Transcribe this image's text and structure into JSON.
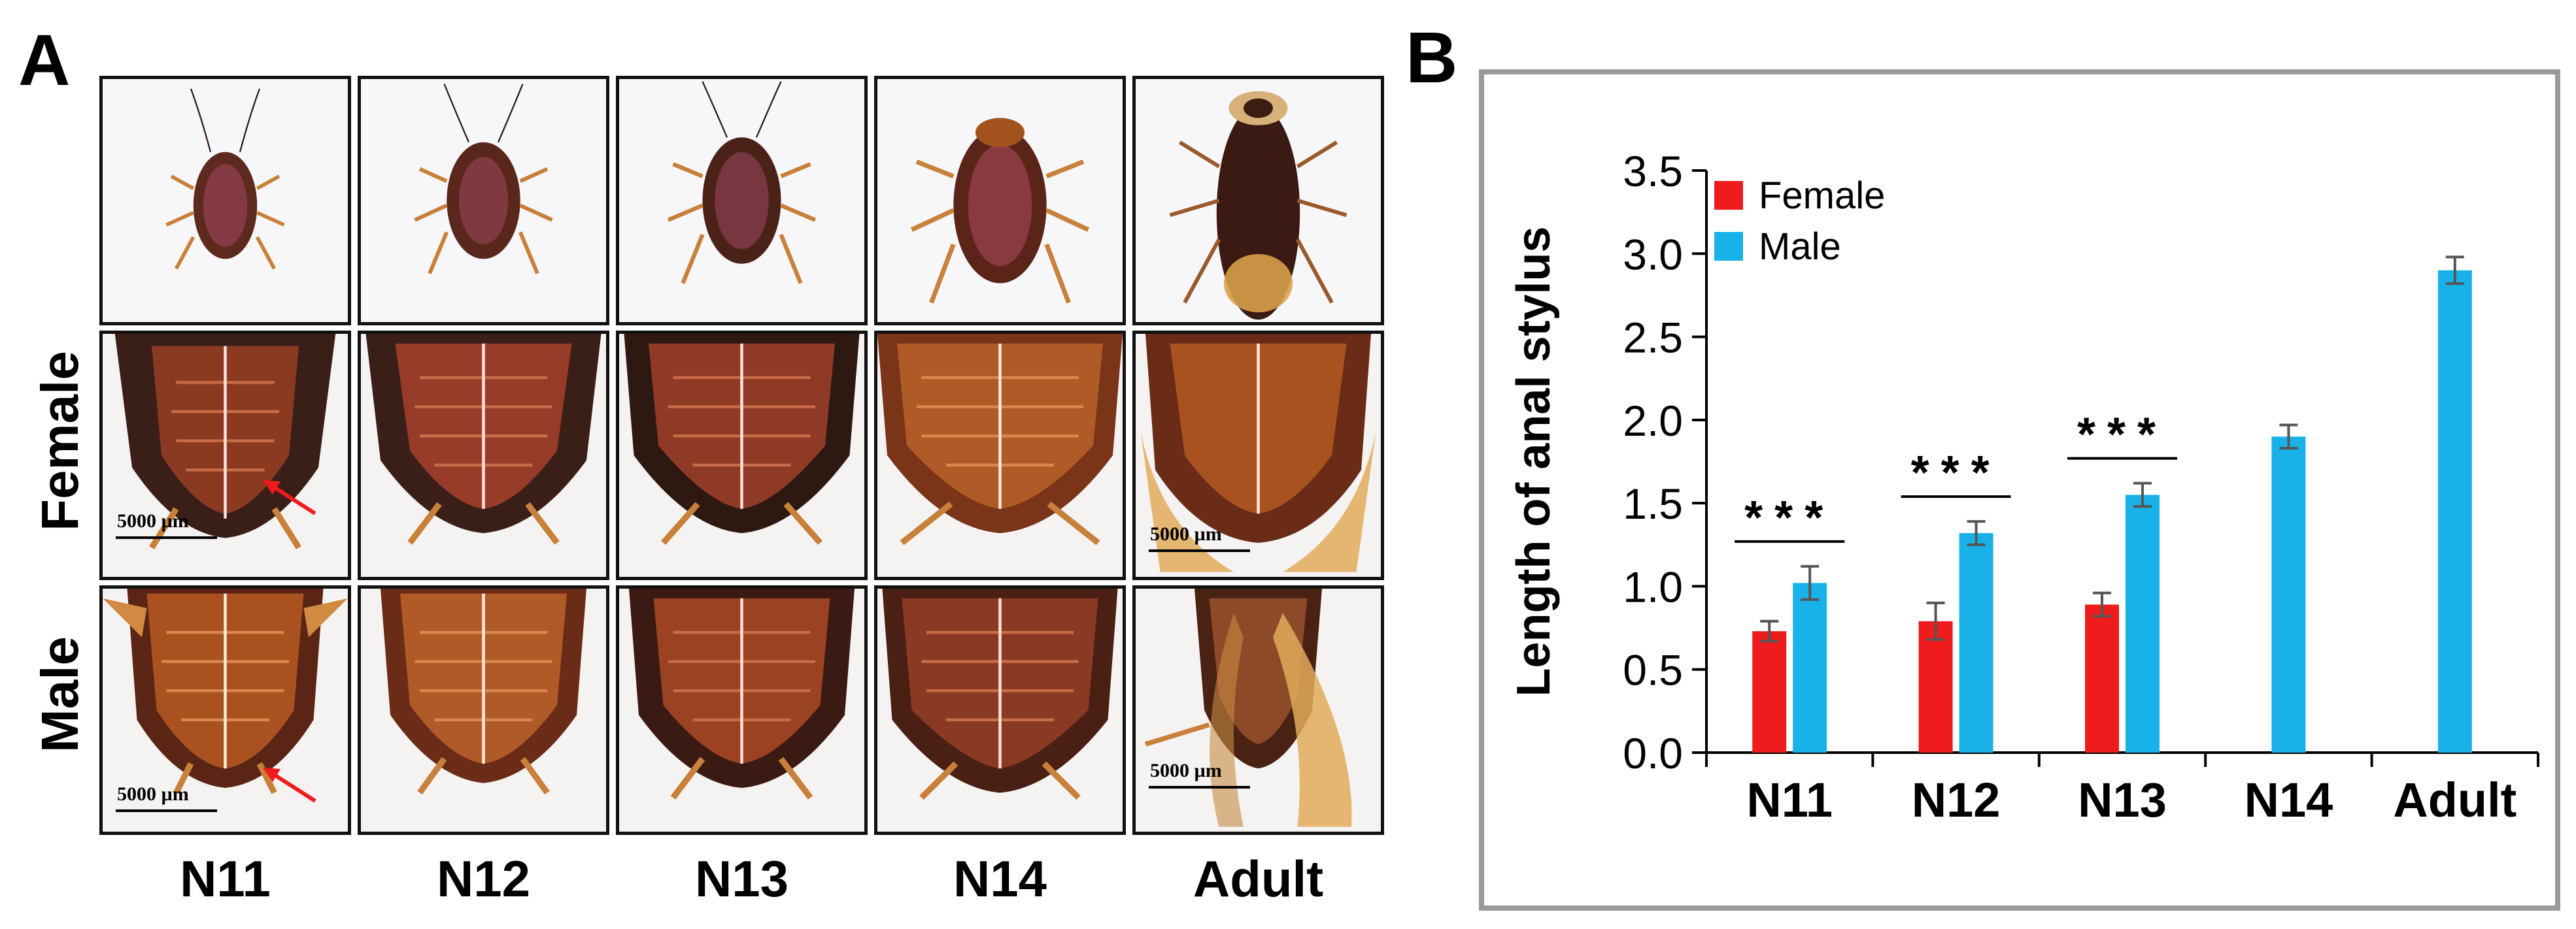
{
  "panel_a": {
    "letter": "A",
    "row_labels": [
      "Female",
      "Male"
    ],
    "columns": [
      "N11",
      "N12",
      "N13",
      "N14",
      "Adult"
    ],
    "scale_bar_label": "5000 µm"
  },
  "panel_b": {
    "letter": "B"
  },
  "colors": {
    "female": "#ee1c1c",
    "male": "#19b2e8",
    "arrow": "#ee1c1c"
  },
  "icons": {
    "arrow": "red-arrow-icon"
  },
  "chart_data": {
    "type": "bar",
    "title": "",
    "xlabel": "",
    "ylabel": "Length of anal stylus",
    "categories": [
      "N11",
      "N12",
      "N13",
      "N14",
      "Adult"
    ],
    "ylim": [
      0,
      3.5
    ],
    "yticks": [
      "0.0",
      "0.5",
      "1.0",
      "1.5",
      "2.0",
      "2.5",
      "3.0",
      "3.5"
    ],
    "legend_position": "top-left",
    "series": [
      {
        "name": "Female",
        "values": [
          0.73,
          0.79,
          0.89,
          null,
          null
        ],
        "errors": [
          0.06,
          0.11,
          0.07,
          null,
          null
        ]
      },
      {
        "name": "Male",
        "values": [
          1.02,
          1.32,
          1.55,
          1.9,
          2.9
        ],
        "errors": [
          0.1,
          0.07,
          0.07,
          0.07,
          0.08
        ]
      }
    ],
    "significance": [
      {
        "category": "N11",
        "label": "***"
      },
      {
        "category": "N12",
        "label": "***"
      },
      {
        "category": "N13",
        "label": "***"
      }
    ]
  }
}
